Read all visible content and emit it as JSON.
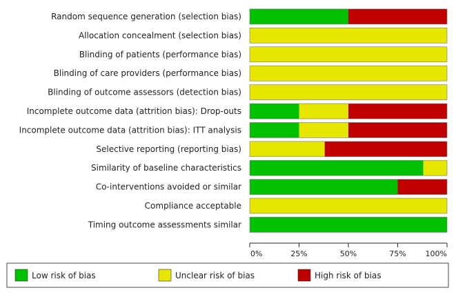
{
  "chart_data": {
    "type": "bar",
    "stacked": true,
    "orientation": "horizontal",
    "categories": [
      "Random sequence generation (selection bias)",
      "Allocation concealment (selection bias)",
      "Blinding of patients (performance bias)",
      "Blinding of care providers (performance bias)",
      "Blinding of outcome assessors (detection bias)",
      "Incomplete outcome data (attrition bias): Drop-outs",
      "Incomplete outcome data (attrition bias): ITT analysis",
      "Selective reporting (reporting bias)",
      "Similarity of baseline characteristics",
      "Co-interventions avoided or similar",
      "Compliance acceptable",
      "Timing outcome assessments similar"
    ],
    "series": [
      {
        "name": "Low risk of bias",
        "color": "#00c000",
        "values": [
          50,
          0,
          0,
          0,
          0,
          25,
          25,
          0,
          88,
          75,
          0,
          100
        ]
      },
      {
        "name": "Unclear risk of bias",
        "color": "#e6e600",
        "values": [
          0,
          100,
          100,
          100,
          100,
          25,
          25,
          38,
          12,
          0,
          100,
          0
        ]
      },
      {
        "name": "High risk of bias",
        "color": "#c00000",
        "values": [
          50,
          0,
          0,
          0,
          0,
          50,
          50,
          62,
          0,
          25,
          0,
          0
        ]
      }
    ],
    "xlim": [
      0,
      100
    ],
    "xticks": [
      "0%",
      "25%",
      "50%",
      "75%",
      "100%"
    ],
    "legend_position": "bottom"
  }
}
